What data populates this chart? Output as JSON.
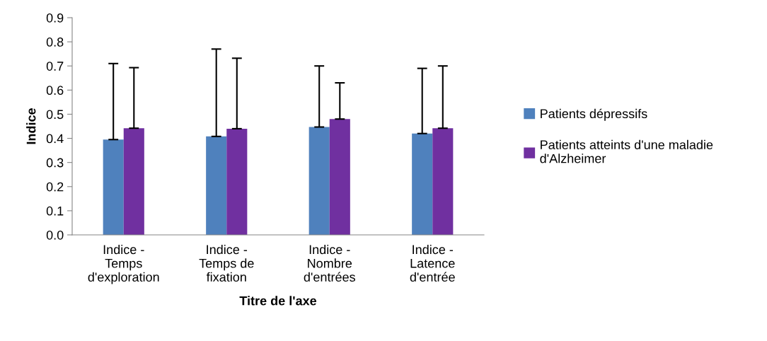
{
  "chart_data": {
    "type": "bar",
    "xlabel": "Titre de l'axe",
    "ylabel": "Indice",
    "categories": [
      "Indice -\nTemps\nd'exploration",
      "Indice -\nTemps de\nfixation",
      "Indice -\nNombre\nd'entrées",
      "Indice -\nLatence\nd'entrée"
    ],
    "series": [
      {
        "name": "Patients dépressifs",
        "color": "#4f81bd",
        "values": [
          0.395,
          0.408,
          0.447,
          0.42
        ],
        "errors": [
          [
            0.395,
            0.71
          ],
          [
            0.408,
            0.77
          ],
          [
            0.447,
            0.7
          ],
          [
            0.42,
            0.69
          ]
        ]
      },
      {
        "name": "Patients atteints d'une maladie\nd'Alzheimer",
        "color": "#7030a0",
        "values": [
          0.442,
          0.44,
          0.48,
          0.442
        ],
        "errors": [
          [
            0.442,
            0.693
          ],
          [
            0.44,
            0.732
          ],
          [
            0.48,
            0.63
          ],
          [
            0.442,
            0.7
          ]
        ]
      }
    ],
    "ylim": [
      0,
      0.9
    ],
    "yticks": [
      {
        "value": 0,
        "label": "0.0"
      },
      {
        "value": 0.1,
        "label": "0.1"
      },
      {
        "value": 0.2,
        "label": "0.2"
      },
      {
        "value": 0.3,
        "label": "0.3"
      },
      {
        "value": 0.4,
        "label": "0.4"
      },
      {
        "value": 0.5,
        "label": "0.5"
      },
      {
        "value": 0.6,
        "label": "0.6"
      },
      {
        "value": 0.7,
        "label": "0.7"
      },
      {
        "value": 0.8,
        "label": "0.8"
      },
      {
        "value": 0.9,
        "label": "0.9"
      }
    ],
    "grid": false,
    "legend": "right"
  }
}
